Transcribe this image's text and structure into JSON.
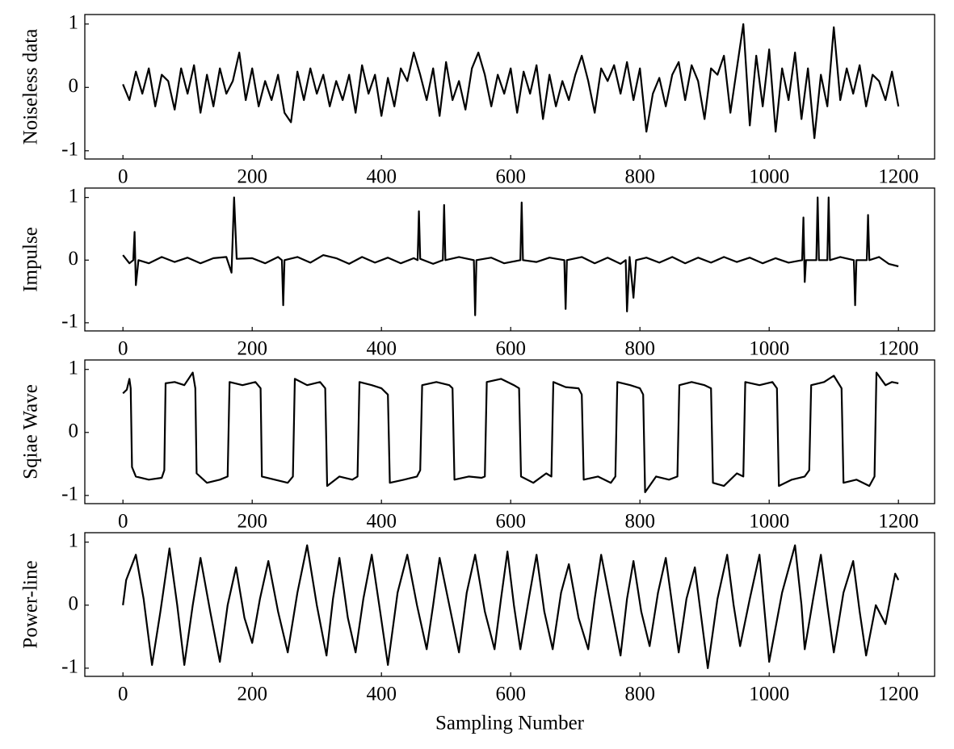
{
  "chart_data": [
    {
      "type": "line",
      "ylabel": "Noiseless data",
      "color": "#000000",
      "xlim": [
        -59,
        1256
      ],
      "ylim": [
        -1.13,
        1.15
      ],
      "xticks": [
        0,
        200,
        400,
        600,
        800,
        1000,
        1200
      ],
      "yticks": [
        -1,
        0,
        1
      ],
      "x": [
        0,
        10,
        20,
        30,
        40,
        50,
        60,
        70,
        80,
        90,
        100,
        110,
        120,
        130,
        140,
        150,
        160,
        170,
        180,
        190,
        200,
        210,
        220,
        230,
        240,
        250,
        260,
        270,
        280,
        290,
        300,
        310,
        320,
        330,
        340,
        350,
        360,
        370,
        380,
        390,
        400,
        410,
        420,
        430,
        440,
        450,
        460,
        470,
        480,
        490,
        500,
        510,
        520,
        530,
        540,
        550,
        560,
        570,
        580,
        590,
        600,
        610,
        620,
        630,
        640,
        650,
        660,
        670,
        680,
        690,
        700,
        710,
        720,
        730,
        740,
        750,
        760,
        770,
        780,
        790,
        800,
        810,
        820,
        830,
        840,
        850,
        860,
        870,
        880,
        890,
        900,
        910,
        920,
        930,
        940,
        950,
        960,
        970,
        980,
        990,
        1000,
        1010,
        1020,
        1030,
        1040,
        1050,
        1060,
        1070,
        1080,
        1090,
        1100,
        1110,
        1120,
        1130,
        1140,
        1150,
        1160,
        1170,
        1180,
        1190,
        1200
      ],
      "values": [
        0.05,
        -0.2,
        0.25,
        -0.1,
        0.3,
        -0.3,
        0.2,
        0.1,
        -0.35,
        0.3,
        -0.1,
        0.35,
        -0.4,
        0.2,
        -0.3,
        0.3,
        -0.1,
        0.1,
        0.55,
        -0.2,
        0.3,
        -0.3,
        0.1,
        -0.2,
        0.2,
        -0.4,
        -0.55,
        0.25,
        -0.2,
        0.3,
        -0.1,
        0.2,
        -0.3,
        0.1,
        -0.2,
        0.2,
        -0.4,
        0.35,
        -0.1,
        0.2,
        -0.45,
        0.15,
        -0.3,
        0.3,
        0.1,
        0.55,
        0.2,
        -0.2,
        0.3,
        -0.45,
        0.4,
        -0.2,
        0.1,
        -0.35,
        0.3,
        0.55,
        0.2,
        -0.3,
        0.2,
        -0.1,
        0.3,
        -0.4,
        0.25,
        -0.1,
        0.35,
        -0.5,
        0.2,
        -0.3,
        0.1,
        -0.2,
        0.2,
        0.5,
        0.1,
        -0.4,
        0.3,
        0.1,
        0.35,
        -0.1,
        0.4,
        -0.2,
        0.3,
        -0.7,
        -0.1,
        0.15,
        -0.3,
        0.2,
        0.4,
        -0.2,
        0.35,
        0.1,
        -0.5,
        0.3,
        0.2,
        0.5,
        -0.4,
        0.3,
        1.0,
        -0.6,
        0.5,
        -0.3,
        0.6,
        -0.7,
        0.3,
        -0.2,
        0.55,
        -0.5,
        0.3,
        -0.8,
        0.2,
        -0.3,
        0.95,
        -0.2,
        0.3,
        -0.1,
        0.35,
        -0.3,
        0.2,
        0.1,
        -0.2,
        0.25,
        -0.3
      ]
    },
    {
      "type": "line",
      "ylabel": "Impulse",
      "color": "#000000",
      "xlim": [
        -59,
        1256
      ],
      "ylim": [
        -1.13,
        1.15
      ],
      "xticks": [
        0,
        200,
        400,
        600,
        800,
        1000,
        1200
      ],
      "yticks": [
        -1,
        0,
        1
      ],
      "x": [
        0,
        10,
        16,
        18,
        20,
        24,
        40,
        60,
        80,
        100,
        120,
        140,
        160,
        168,
        172,
        176,
        200,
        220,
        240,
        246,
        248,
        250,
        270,
        290,
        310,
        330,
        350,
        370,
        390,
        410,
        430,
        450,
        456,
        458,
        460,
        480,
        495,
        497,
        499,
        520,
        543,
        545,
        547,
        570,
        590,
        615,
        617,
        619,
        640,
        660,
        683,
        685,
        687,
        710,
        730,
        750,
        770,
        778,
        780,
        784,
        790,
        794,
        810,
        830,
        850,
        870,
        890,
        910,
        930,
        950,
        970,
        990,
        1010,
        1030,
        1051,
        1053,
        1055,
        1057,
        1073,
        1075,
        1077,
        1090,
        1092,
        1094,
        1110,
        1131,
        1133,
        1135,
        1151,
        1153,
        1155,
        1170,
        1185,
        1200
      ],
      "values": [
        0.08,
        -0.05,
        0.0,
        0.45,
        -0.4,
        0.0,
        -0.05,
        0.05,
        -0.03,
        0.04,
        -0.05,
        0.03,
        0.05,
        -0.2,
        1.0,
        0.02,
        0.03,
        -0.05,
        0.05,
        0.0,
        -0.72,
        0.0,
        0.05,
        -0.04,
        0.08,
        0.03,
        -0.06,
        0.05,
        -0.04,
        0.04,
        -0.05,
        0.03,
        0.0,
        0.78,
        0.02,
        -0.06,
        0.0,
        0.88,
        0.0,
        0.05,
        0.0,
        -0.88,
        0.0,
        0.04,
        -0.05,
        0.0,
        0.92,
        0.0,
        -0.03,
        0.04,
        0.0,
        -0.78,
        0.0,
        0.05,
        -0.05,
        0.04,
        -0.06,
        0.0,
        -0.82,
        0.05,
        -0.6,
        0.0,
        0.04,
        -0.04,
        0.05,
        -0.05,
        0.04,
        -0.04,
        0.05,
        -0.03,
        0.04,
        -0.05,
        0.03,
        -0.04,
        0.0,
        0.68,
        -0.35,
        0.0,
        0.0,
        1.0,
        0.0,
        0.0,
        1.0,
        0.0,
        0.05,
        0.0,
        -0.72,
        0.0,
        0.0,
        0.72,
        0.0,
        0.05,
        -0.06,
        -0.1
      ]
    },
    {
      "type": "line",
      "ylabel": "Sqiae Wave",
      "color": "#000000",
      "xlim": [
        -59,
        1256
      ],
      "ylim": [
        -1.13,
        1.15
      ],
      "xticks": [
        0,
        200,
        400,
        600,
        800,
        1000,
        1200
      ],
      "yticks": [
        -1,
        0,
        1
      ],
      "x": [
        0,
        6,
        10,
        12,
        14,
        20,
        40,
        60,
        64,
        66,
        80,
        95,
        108,
        112,
        114,
        130,
        150,
        162,
        165,
        185,
        205,
        213,
        215,
        235,
        255,
        263,
        266,
        285,
        305,
        313,
        316,
        335,
        355,
        363,
        366,
        385,
        400,
        410,
        413,
        435,
        455,
        460,
        463,
        485,
        505,
        510,
        513,
        535,
        555,
        560,
        563,
        585,
        605,
        613,
        616,
        635,
        655,
        663,
        666,
        685,
        705,
        710,
        713,
        735,
        755,
        762,
        765,
        785,
        800,
        805,
        808,
        825,
        845,
        858,
        861,
        880,
        900,
        910,
        913,
        930,
        950,
        960,
        963,
        985,
        1005,
        1012,
        1015,
        1035,
        1055,
        1062,
        1065,
        1085,
        1100,
        1112,
        1115,
        1135,
        1155,
        1163,
        1166,
        1180,
        1190,
        1200
      ],
      "values": [
        0.62,
        0.68,
        0.85,
        0.7,
        -0.55,
        -0.7,
        -0.75,
        -0.72,
        -0.6,
        0.78,
        0.8,
        0.75,
        0.95,
        0.7,
        -0.65,
        -0.8,
        -0.75,
        -0.7,
        0.8,
        0.75,
        0.8,
        0.7,
        -0.7,
        -0.75,
        -0.8,
        -0.7,
        0.85,
        0.75,
        0.8,
        0.7,
        -0.85,
        -0.7,
        -0.75,
        -0.7,
        0.8,
        0.75,
        0.7,
        0.6,
        -0.8,
        -0.75,
        -0.7,
        -0.6,
        0.75,
        0.8,
        0.75,
        0.7,
        -0.75,
        -0.7,
        -0.72,
        -0.7,
        0.8,
        0.85,
        0.75,
        0.7,
        -0.7,
        -0.8,
        -0.65,
        -0.7,
        0.8,
        0.72,
        0.7,
        0.6,
        -0.75,
        -0.7,
        -0.8,
        -0.7,
        0.8,
        0.75,
        0.7,
        0.6,
        -0.95,
        -0.7,
        -0.75,
        -0.7,
        0.75,
        0.8,
        0.75,
        0.7,
        -0.8,
        -0.85,
        -0.65,
        -0.7,
        0.8,
        0.75,
        0.8,
        0.7,
        -0.85,
        -0.75,
        -0.7,
        -0.6,
        0.75,
        0.8,
        0.9,
        0.7,
        -0.8,
        -0.75,
        -0.85,
        -0.7,
        0.95,
        0.75,
        0.8,
        0.78
      ]
    },
    {
      "type": "line",
      "ylabel": "Power-line",
      "xlabel": "Sampling Number",
      "color": "#000000",
      "xlim": [
        -59,
        1256
      ],
      "ylim": [
        -1.13,
        1.15
      ],
      "xticks": [
        0,
        200,
        400,
        600,
        800,
        1000,
        1200
      ],
      "yticks": [
        -1,
        0,
        1
      ],
      "x": [
        0,
        5,
        20,
        32,
        45,
        58,
        72,
        84,
        95,
        108,
        120,
        135,
        150,
        162,
        175,
        188,
        200,
        212,
        225,
        240,
        255,
        270,
        285,
        300,
        315,
        325,
        335,
        348,
        360,
        372,
        385,
        398,
        410,
        425,
        440,
        455,
        470,
        480,
        490,
        505,
        520,
        532,
        545,
        560,
        575,
        585,
        595,
        605,
        615,
        628,
        640,
        652,
        665,
        678,
        690,
        705,
        720,
        730,
        740,
        755,
        770,
        780,
        790,
        802,
        815,
        828,
        840,
        850,
        860,
        872,
        885,
        895,
        905,
        920,
        935,
        945,
        955,
        970,
        985,
        992,
        1000,
        1020,
        1040,
        1050,
        1055,
        1068,
        1080,
        1090,
        1100,
        1115,
        1130,
        1140,
        1150,
        1165,
        1180,
        1195,
        1200
      ],
      "values": [
        0.0,
        0.4,
        0.8,
        0.1,
        -0.95,
        -0.1,
        0.9,
        0.0,
        -0.95,
        0.0,
        0.75,
        -0.1,
        -0.9,
        0.0,
        0.6,
        -0.2,
        -0.6,
        0.1,
        0.7,
        -0.1,
        -0.75,
        0.2,
        0.95,
        0.0,
        -0.8,
        0.1,
        0.75,
        -0.2,
        -0.75,
        0.1,
        0.8,
        -0.1,
        -0.95,
        0.2,
        0.8,
        0.0,
        -0.7,
        0.0,
        0.75,
        0.0,
        -0.75,
        0.2,
        0.8,
        -0.1,
        -0.7,
        0.1,
        0.85,
        0.0,
        -0.7,
        0.1,
        0.8,
        -0.1,
        -0.7,
        0.2,
        0.65,
        -0.2,
        -0.7,
        0.1,
        0.8,
        0.0,
        -0.8,
        0.1,
        0.7,
        -0.1,
        -0.65,
        0.2,
        0.75,
        0.0,
        -0.75,
        0.1,
        0.6,
        -0.2,
        -1.0,
        0.1,
        0.8,
        0.0,
        -0.65,
        0.1,
        0.8,
        0.0,
        -0.9,
        0.2,
        0.95,
        0.0,
        -0.7,
        0.1,
        0.8,
        0.0,
        -0.75,
        0.2,
        0.7,
        -0.1,
        -0.8,
        0.0,
        -0.3,
        0.5,
        0.4
      ]
    }
  ]
}
